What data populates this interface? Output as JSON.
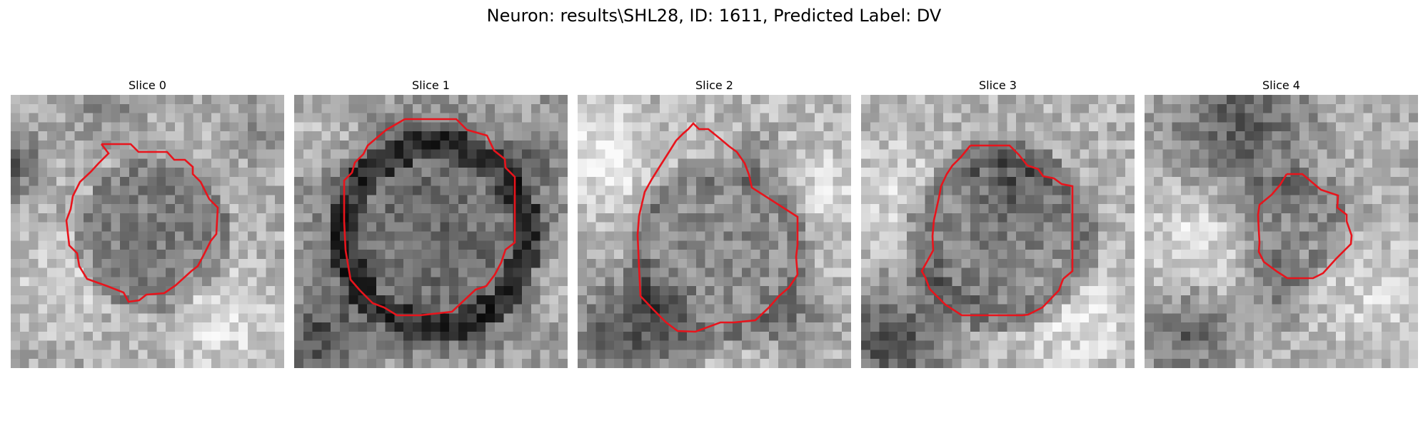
{
  "figure": {
    "title": "Neuron: results\\SHL28, ID: 1611, Predicted Label: DV"
  },
  "slices": [
    {
      "title": "Slice 0"
    },
    {
      "title": "Slice 1"
    },
    {
      "title": "Slice 2"
    },
    {
      "title": "Slice 3"
    },
    {
      "title": "Slice 4"
    }
  ],
  "colors": {
    "contour": "#e8141c",
    "background": "#ffffff"
  },
  "colormap": "gray"
}
